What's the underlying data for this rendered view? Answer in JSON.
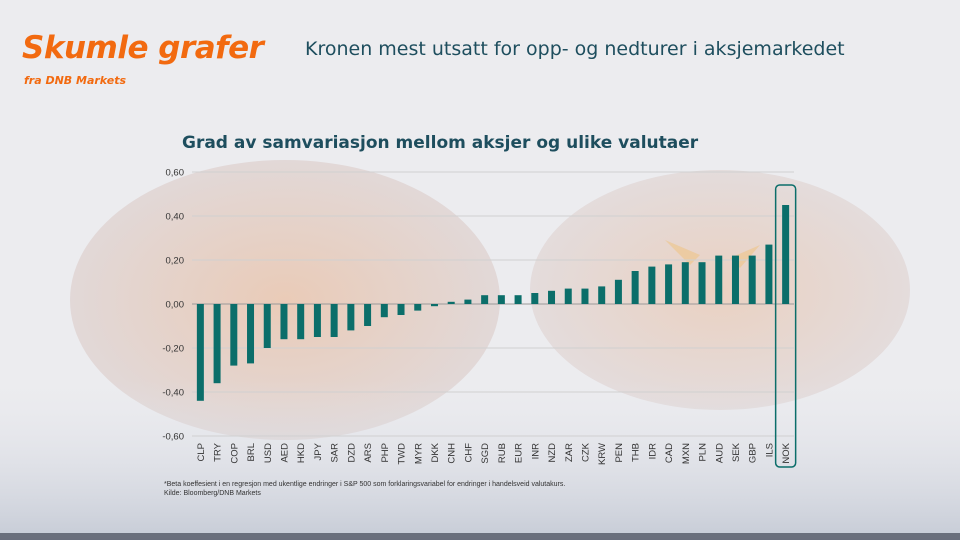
{
  "header": {
    "brand": "Skumle grafer",
    "brand_sub": "fra DNB Markets",
    "headline": "Kronen mest utsatt for opp- og nedturer i aksjemarkedet"
  },
  "colors": {
    "brand": "#f26a10",
    "bar": "#0b6e6a",
    "title": "#1e4e5e",
    "highlight_box": "#0b6e6a"
  },
  "footnote": {
    "line1": "*Beta koeffesient i en regresjon med ukentlige endringer i S&P 500 som forklaringsvariabel for endringer i handelsveid valutakurs.",
    "line2": "Kilde: Bloomberg/DNB Markets"
  },
  "chart_data": {
    "type": "bar",
    "title": "Grad av samvariasjon mellom aksjer og ulike valutaer",
    "categories": [
      "CLP",
      "TRY",
      "COP",
      "BRL",
      "USD",
      "AED",
      "HKD",
      "JPY",
      "SAR",
      "DZD",
      "ARS",
      "PHP",
      "TWD",
      "MYR",
      "DKK",
      "CNH",
      "CHF",
      "SGD",
      "RUB",
      "EUR",
      "INR",
      "NZD",
      "ZAR",
      "CZK",
      "KRW",
      "PEN",
      "THB",
      "IDR",
      "CAD",
      "MXN",
      "PLN",
      "AUD",
      "SEK",
      "GBP",
      "ILS",
      "NOK"
    ],
    "values": [
      -0.44,
      -0.36,
      -0.28,
      -0.27,
      -0.2,
      -0.16,
      -0.16,
      -0.15,
      -0.15,
      -0.12,
      -0.1,
      -0.06,
      -0.05,
      -0.03,
      -0.01,
      0.01,
      0.02,
      0.04,
      0.04,
      0.04,
      0.05,
      0.06,
      0.07,
      0.07,
      0.08,
      0.11,
      0.15,
      0.17,
      0.18,
      0.19,
      0.19,
      0.22,
      0.22,
      0.22,
      0.27,
      0.45
    ],
    "ylim": [
      -0.6,
      0.6
    ],
    "yticks": [
      "0,60",
      "0,40",
      "0,20",
      "0,00",
      "-0,20",
      "-0,40",
      "-0,60"
    ],
    "ytick_values": [
      0.6,
      0.4,
      0.2,
      0.0,
      -0.2,
      -0.4,
      -0.6
    ],
    "grid": true,
    "highlight_category": "NOK",
    "xlabel": "",
    "ylabel": ""
  }
}
